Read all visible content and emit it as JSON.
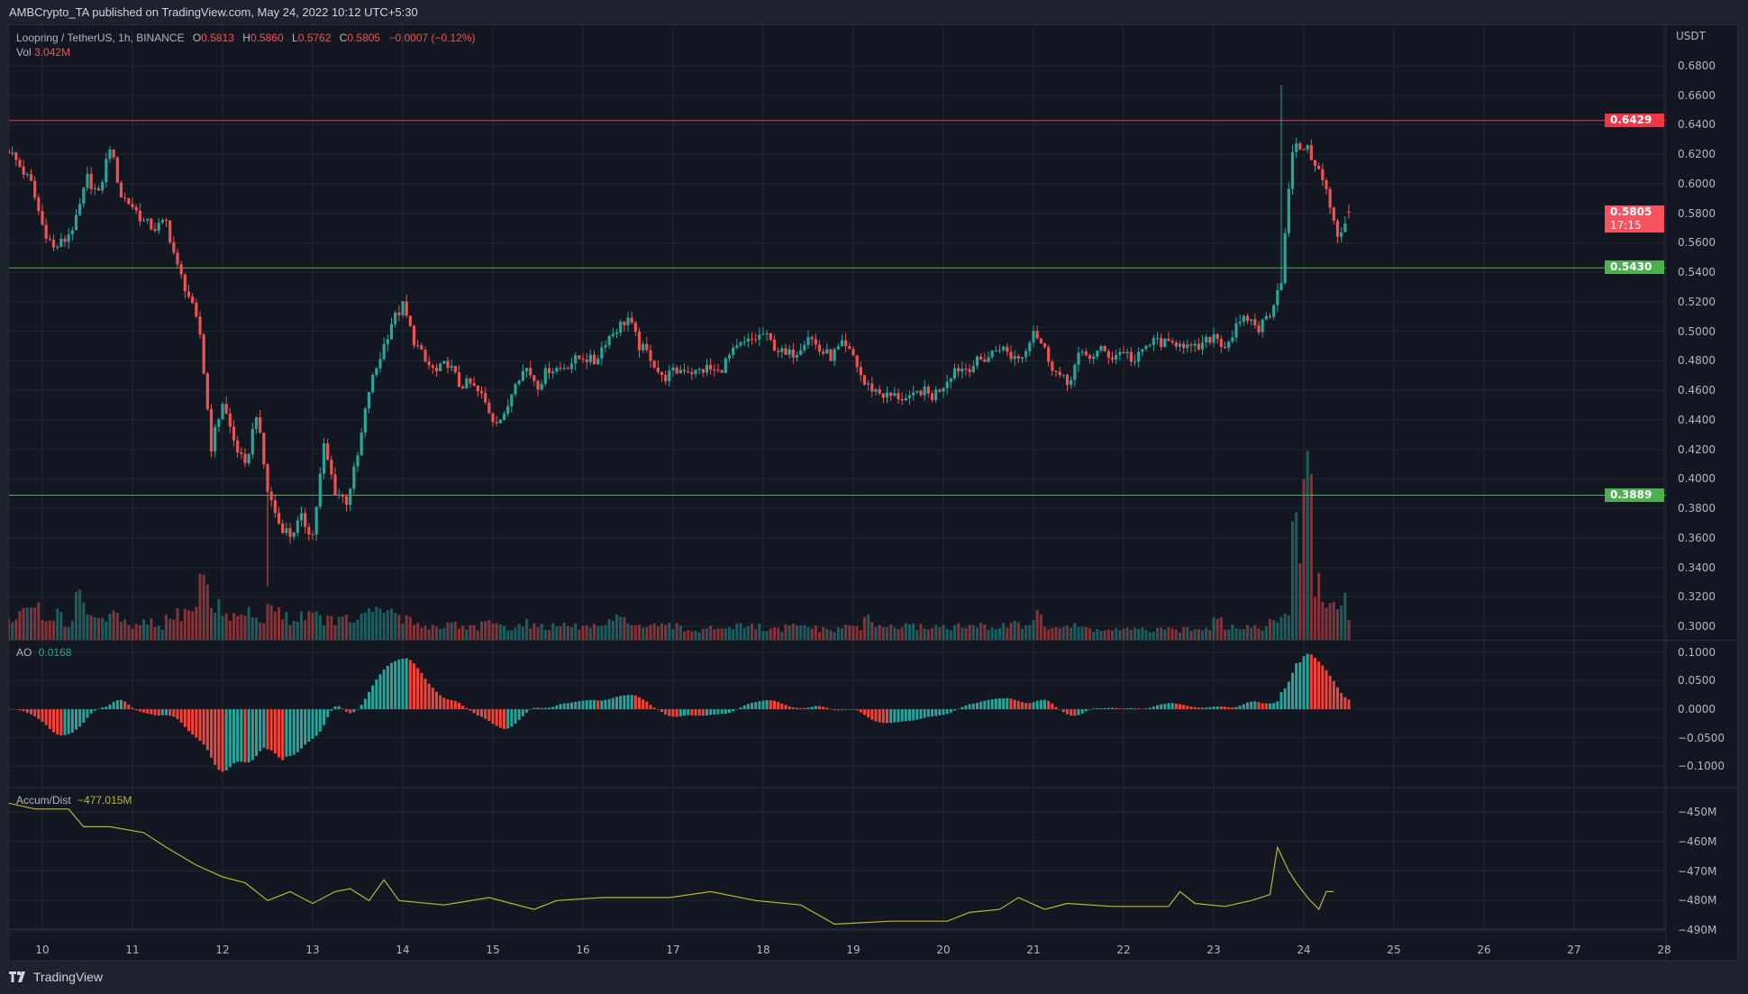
{
  "header": {
    "publisher_line": "AMBCrypto_TA published on TradingView.com, May 24, 2022 10:12 UTC+5:30"
  },
  "legend": {
    "symbol": "Loopring / TetherUS, 1h, BINANCE",
    "o_label": "O",
    "o": "0.5813",
    "h_label": "H",
    "h": "0.5860",
    "l_label": "L",
    "l": "0.5762",
    "c_label": "C",
    "c": "0.5805",
    "change": "−0.0007 (−0.12%)",
    "vol_label": "Vol",
    "vol": "3.042M"
  },
  "ao_legend": {
    "label": "AO",
    "value": "0.0168"
  },
  "ad_legend": {
    "label": "Accum/Dist",
    "value": "−477.015M"
  },
  "price_axis": {
    "unit": "USDT",
    "labels": [
      "0.6800",
      "0.6600",
      "0.6400",
      "0.6200",
      "0.6000",
      "0.5800",
      "0.5600",
      "0.5400",
      "0.5200",
      "0.5000",
      "0.4800",
      "0.4600",
      "0.4400",
      "0.4200",
      "0.4000",
      "0.3800",
      "0.3600",
      "0.3400",
      "0.3200",
      "0.3000"
    ]
  },
  "ao_axis": {
    "labels": [
      "0.1000",
      "0.0500",
      "0.0000",
      "−0.0500",
      "−0.1000"
    ]
  },
  "ad_axis": {
    "labels": [
      "−450M",
      "−460M",
      "−470M",
      "−480M",
      "−490M"
    ]
  },
  "time_axis": {
    "labels": [
      "10",
      "11",
      "12",
      "13",
      "14",
      "15",
      "16",
      "17",
      "18",
      "19",
      "20",
      "21",
      "22",
      "23",
      "24",
      "25",
      "26",
      "27",
      "28"
    ]
  },
  "price_tags": [
    {
      "value": "0.6429",
      "color": "#f23645"
    },
    {
      "value": "0.5805",
      "countdown": "17:15",
      "color": "#f7525f"
    },
    {
      "value": "0.5430",
      "color": "#4caf50"
    },
    {
      "value": "0.3889",
      "color": "#4caf50"
    }
  ],
  "footer": {
    "brand": "TradingView"
  },
  "colors": {
    "background": "#131722",
    "up": "#26a69a",
    "down": "#ef5350",
    "grid": "#2a2e39",
    "accum_dist": "#b8b82c",
    "ao_up": "#26a69a",
    "ao_down": "#f44336"
  },
  "chart_data": [
    {
      "type": "candlestick",
      "interval": "1h",
      "start": "2022-05-09 15:00",
      "sample_step_hours": 3,
      "ylim": [
        0.29,
        0.69
      ],
      "closes": [
        0.623,
        0.612,
        0.6,
        0.572,
        0.556,
        0.562,
        0.575,
        0.604,
        0.592,
        0.626,
        0.592,
        0.585,
        0.574,
        0.57,
        0.574,
        0.543,
        0.524,
        0.498,
        0.422,
        0.452,
        0.426,
        0.407,
        0.445,
        0.392,
        0.37,
        0.362,
        0.373,
        0.362,
        0.422,
        0.392,
        0.385,
        0.415,
        0.46,
        0.483,
        0.506,
        0.517,
        0.494,
        0.479,
        0.472,
        0.479,
        0.464,
        0.464,
        0.456,
        0.441,
        0.441,
        0.468,
        0.475,
        0.464,
        0.475,
        0.475,
        0.479,
        0.483,
        0.479,
        0.494,
        0.502,
        0.509,
        0.49,
        0.483,
        0.468,
        0.472,
        0.475,
        0.472,
        0.475,
        0.472,
        0.483,
        0.49,
        0.494,
        0.498,
        0.49,
        0.483,
        0.487,
        0.498,
        0.487,
        0.483,
        0.49,
        0.483,
        0.464,
        0.46,
        0.456,
        0.456,
        0.453,
        0.46,
        0.456,
        0.464,
        0.475,
        0.475,
        0.479,
        0.483,
        0.49,
        0.483,
        0.483,
        0.502,
        0.487,
        0.472,
        0.464,
        0.483,
        0.483,
        0.487,
        0.483,
        0.487,
        0.479,
        0.49,
        0.494,
        0.49,
        0.494,
        0.487,
        0.49,
        0.498,
        0.49,
        0.502,
        0.509,
        0.502,
        0.513,
        0.536,
        0.623,
        0.626,
        0.615,
        0.595,
        0.562,
        0.5805
      ],
      "volume_millions": [
        3,
        4,
        5,
        3,
        4,
        2.5,
        6,
        4,
        3,
        3.5,
        2.5,
        2,
        2.5,
        2,
        3,
        4,
        5,
        9,
        5,
        4,
        3.5,
        4,
        3,
        5,
        4,
        3,
        4,
        3.5,
        3,
        3,
        3,
        3.5,
        4,
        4.5,
        4,
        3,
        2.5,
        2,
        2,
        2.5,
        2,
        2,
        2.5,
        2,
        2,
        2,
        2.5,
        2,
        2,
        2,
        2,
        2,
        2,
        2.5,
        3,
        3,
        2,
        2,
        2,
        2,
        1.5,
        1.5,
        2,
        2,
        2,
        2,
        2,
        1.5,
        1.5,
        2,
        2,
        2,
        1.5,
        1.5,
        2,
        2,
        3,
        2,
        2,
        2,
        2,
        2,
        2,
        2,
        2,
        2,
        2,
        2,
        2,
        3,
        2,
        3.5,
        2,
        2,
        2,
        2,
        1.5,
        1.5,
        1.5,
        1.5,
        1.5,
        1.5,
        1.5,
        1.5,
        1.5,
        1.5,
        2,
        4,
        2,
        2,
        2,
        2,
        2.5,
        4,
        15,
        24,
        8,
        5,
        6,
        3.042
      ],
      "wicks": [
        {
          "time": "2022-05-23 18:00",
          "high": 0.667
        },
        {
          "time": "2022-05-12 12:00",
          "low": 0.327
        }
      ],
      "last_candle": {
        "open": 0.5813,
        "high": 0.586,
        "low": 0.5762,
        "close": 0.5805
      },
      "hlines": [
        {
          "value": 0.6429,
          "color": "#f23645"
        },
        {
          "value": 0.543,
          "color": "#4caf50"
        },
        {
          "value": 0.3889,
          "color": "#4caf50"
        }
      ]
    },
    {
      "type": "bar",
      "name": "AO",
      "ylim": [
        -0.12,
        0.11
      ],
      "last": 0.0168
    },
    {
      "type": "line",
      "name": "Accum/Dist",
      "ylim": [
        -493,
        -444
      ],
      "points": [
        [
          "2022-05-09 15:00",
          -447
        ],
        [
          "2022-05-09 22:00",
          -449
        ],
        [
          "2022-05-10 07:00",
          -449
        ],
        [
          "2022-05-10 11:00",
          -455
        ],
        [
          "2022-05-10 18:00",
          -455
        ],
        [
          "2022-05-11 03:00",
          -457
        ],
        [
          "2022-05-11 09:00",
          -462
        ],
        [
          "2022-05-11 17:00",
          -468
        ],
        [
          "2022-05-12 00:00",
          -472
        ],
        [
          "2022-05-12 06:00",
          -474
        ],
        [
          "2022-05-12 09:00",
          -477
        ],
        [
          "2022-05-12 12:00",
          -480
        ],
        [
          "2022-05-12 18:00",
          -477
        ],
        [
          "2022-05-13 00:00",
          -481
        ],
        [
          "2022-05-13 06:00",
          -477
        ],
        [
          "2022-05-13 10:00",
          -476
        ],
        [
          "2022-05-13 15:00",
          -480
        ],
        [
          "2022-05-13 19:00",
          -473
        ],
        [
          "2022-05-13 23:00",
          -480
        ],
        [
          "2022-05-14 11:00",
          -481.5
        ],
        [
          "2022-05-14 23:00",
          -479
        ],
        [
          "2022-05-15 11:00",
          -483
        ],
        [
          "2022-05-15 17:00",
          -480
        ],
        [
          "2022-05-16 05:00",
          -479
        ],
        [
          "2022-05-16 23:00",
          -479
        ],
        [
          "2022-05-17 10:00",
          -477
        ],
        [
          "2022-05-17 22:00",
          -480
        ],
        [
          "2022-05-18 10:00",
          -481.5
        ],
        [
          "2022-05-18 19:00",
          -488
        ],
        [
          "2022-05-19 10:00",
          -487
        ],
        [
          "2022-05-20 01:00",
          -487
        ],
        [
          "2022-05-20 07:00",
          -484
        ],
        [
          "2022-05-20 15:00",
          -483
        ],
        [
          "2022-05-20 20:00",
          -479
        ],
        [
          "2022-05-21 03:00",
          -483
        ],
        [
          "2022-05-21 09:00",
          -481
        ],
        [
          "2022-05-21 21:00",
          -482
        ],
        [
          "2022-05-22 12:00",
          -482
        ],
        [
          "2022-05-22 15:00",
          -477
        ],
        [
          "2022-05-22 19:00",
          -481
        ],
        [
          "2022-05-23 03:00",
          -482
        ],
        [
          "2022-05-23 10:00",
          -480
        ],
        [
          "2022-05-23 15:00",
          -478
        ],
        [
          "2022-05-23 17:00",
          -462
        ],
        [
          "2022-05-23 20:00",
          -470
        ],
        [
          "2022-05-23 22:00",
          -474
        ],
        [
          "2022-05-24 01:00",
          -479
        ],
        [
          "2022-05-24 04:00",
          -483
        ],
        [
          "2022-05-24 06:00",
          -477
        ],
        [
          "2022-05-24 08:00",
          -477
        ]
      ]
    }
  ]
}
